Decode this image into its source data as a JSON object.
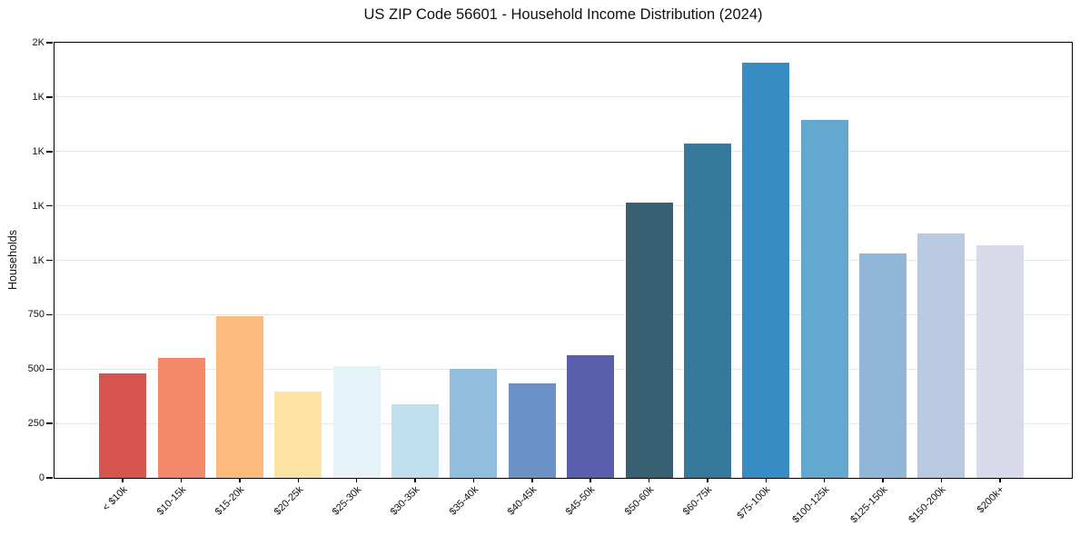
{
  "chart_data": {
    "type": "bar",
    "title": "US ZIP Code 56601 - Household Income Distribution (2024)",
    "xlabel": "",
    "ylabel": "Households",
    "categories": [
      "< $10k",
      "$10-15k",
      "$15-20k",
      "$20-25k",
      "$25-30k",
      "$30-35k",
      "$35-40k",
      "$40-45k",
      "$45-50k",
      "$50-60k",
      "$60-75k",
      "$75-100k",
      "$100-125k",
      "$125-150k",
      "$150-200k",
      "$200k+"
    ],
    "values": [
      480,
      550,
      745,
      395,
      515,
      340,
      500,
      435,
      565,
      1265,
      1535,
      1910,
      1645,
      1030,
      1125,
      1070
    ],
    "bar_colors": [
      "#d6564f",
      "#f4886b",
      "#fcbb7c",
      "#fce3a3",
      "#e5f2f7",
      "#bfdfee",
      "#92bedd",
      "#6b92c7",
      "#5a5fad",
      "#386073",
      "#35799b",
      "#378dc3",
      "#63a8ce",
      "#90b7d8",
      "#b9c9e1",
      "#d8daea"
    ],
    "ylim": [
      0,
      2000
    ],
    "yticks": [
      {
        "value": 0,
        "label": "0"
      },
      {
        "value": 250,
        "label": "250"
      },
      {
        "value": 500,
        "label": "500"
      },
      {
        "value": 750,
        "label": "750"
      },
      {
        "value": 1000,
        "label": "1K"
      },
      {
        "value": 1250,
        "label": "1K"
      },
      {
        "value": 1500,
        "label": "1K"
      },
      {
        "value": 1750,
        "label": "1K"
      },
      {
        "value": 2000,
        "label": "2K"
      }
    ],
    "grid": "horizontal",
    "gridline_color": "#e7e7e7",
    "legend": "none",
    "x_label_rotation_deg": 45
  }
}
